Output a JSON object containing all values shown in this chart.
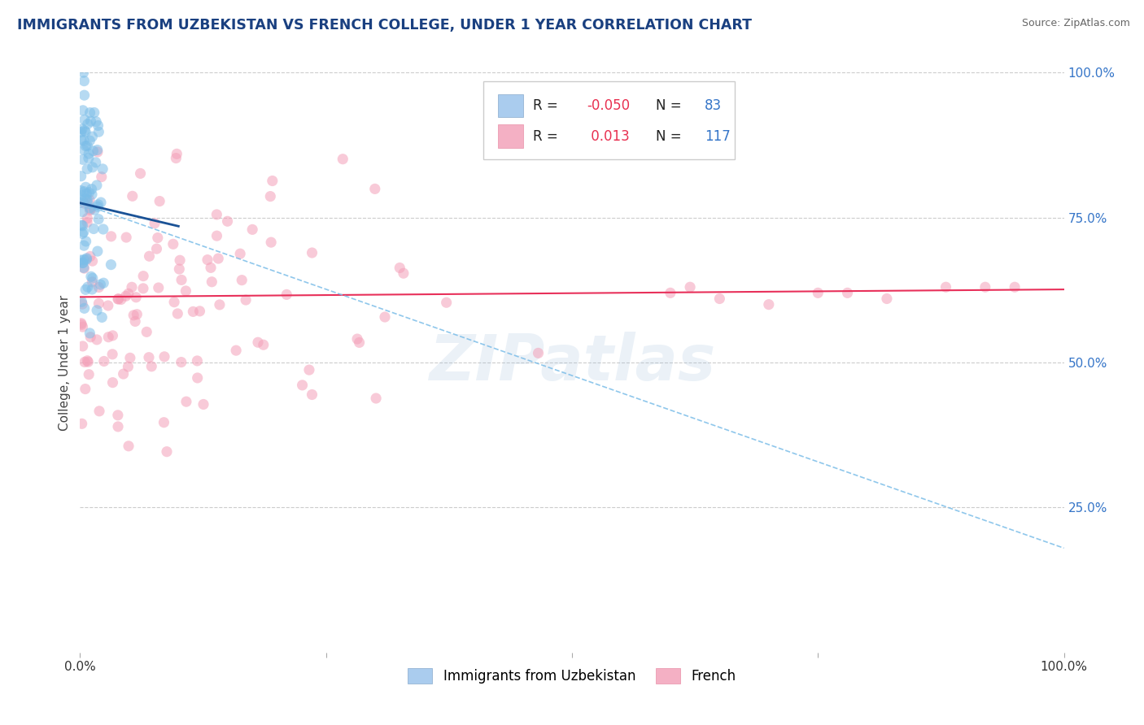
{
  "title": "IMMIGRANTS FROM UZBEKISTAN VS FRENCH COLLEGE, UNDER 1 YEAR CORRELATION CHART",
  "source": "Source: ZipAtlas.com",
  "ylabel": "College, Under 1 year",
  "watermark": "ZIPatlas",
  "legend1_label": "Immigrants from Uzbekistan",
  "legend2_label": "French",
  "R1": -0.05,
  "N1": 83,
  "R2": 0.013,
  "N2": 117,
  "blue_color": "#7bbde8",
  "pink_color": "#f4a0b8",
  "blue_line_color": "#1a5296",
  "pink_line_color": "#e8305a",
  "blue_dash_color": "#7bbde8",
  "title_color": "#1a4080",
  "source_color": "#666666",
  "ytick_color": "#3575c8",
  "xtick_color": "#333333",
  "legend_text_color": "#222222",
  "legend_R_neg_color": "#e83050",
  "legend_R_pos_color": "#e83050",
  "legend_N_color": "#3575c8",
  "background_color": "#ffffff",
  "grid_color": "#cccccc",
  "seed": 42
}
